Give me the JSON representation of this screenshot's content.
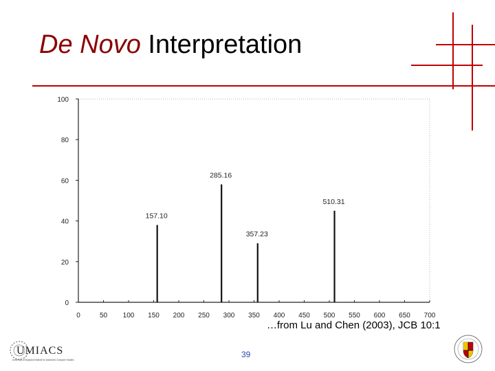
{
  "slide": {
    "title_italic": "De Novo",
    "title_rest": " Interpretation",
    "citation": "…from Lu and Chen (2003), JCB 10:1",
    "page_number": "39",
    "logo_left_text": "UMIACS",
    "logo_left_subtext": "University of Maryland Institute for Advanced Computer Studies",
    "logo_right_name": "University of Maryland seal",
    "accent_color": "#c00000"
  },
  "chart_data": {
    "type": "bar",
    "title": "",
    "xlabel": "",
    "ylabel": "",
    "xlim": [
      0,
      700
    ],
    "ylim": [
      0,
      100
    ],
    "x_ticks": [
      0,
      50,
      100,
      150,
      200,
      250,
      300,
      350,
      400,
      450,
      500,
      550,
      600,
      650,
      700
    ],
    "y_ticks": [
      0,
      20,
      40,
      60,
      80,
      100
    ],
    "grid": false,
    "peaks": [
      {
        "x": 157.1,
        "y": 38,
        "label": "157.10"
      },
      {
        "x": 285.16,
        "y": 58,
        "label": "285.16"
      },
      {
        "x": 357.23,
        "y": 29,
        "label": "357.23"
      },
      {
        "x": 510.31,
        "y": 45,
        "label": "510.31"
      }
    ]
  }
}
